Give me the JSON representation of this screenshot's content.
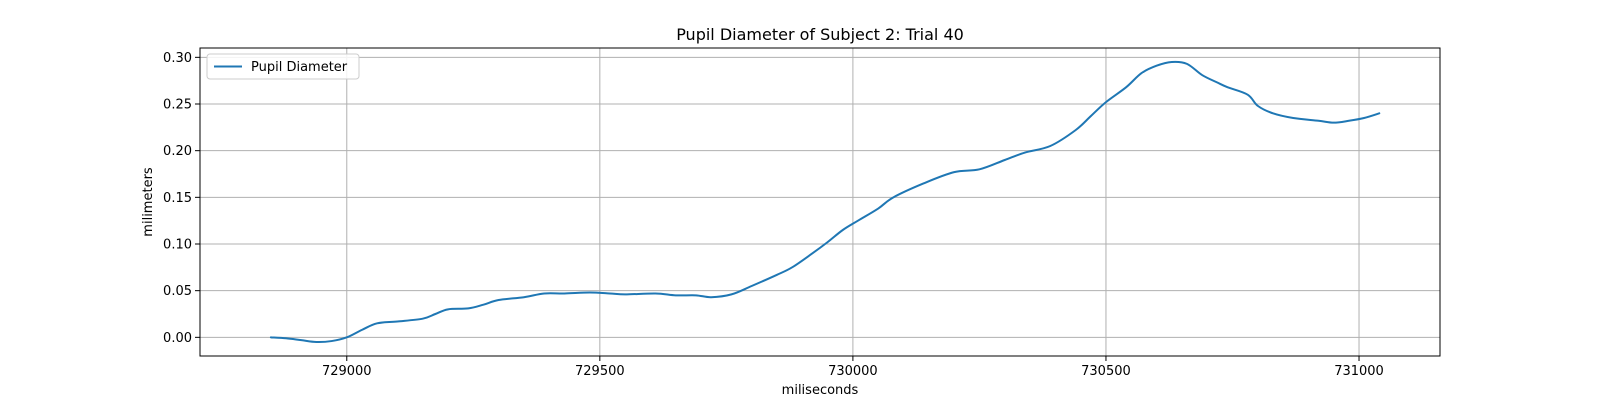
{
  "chart_data": {
    "type": "line",
    "title": "Pupil Diameter of Subject 2: Trial 40",
    "xlabel": "miliseconds",
    "ylabel": "milimeters",
    "xlim": [
      728710,
      731160
    ],
    "ylim": [
      -0.02,
      0.31
    ],
    "xticks": [
      729000,
      729500,
      730000,
      730500,
      731000
    ],
    "xtick_labels": [
      "729000",
      "729500",
      "730000",
      "730500",
      "731000"
    ],
    "yticks": [
      0.0,
      0.05,
      0.1,
      0.15,
      0.2,
      0.25,
      0.3
    ],
    "ytick_labels": [
      "0.00",
      "0.05",
      "0.10",
      "0.15",
      "0.20",
      "0.25",
      "0.30"
    ],
    "grid": true,
    "legend": {
      "position": "top-left"
    },
    "series": [
      {
        "name": "Pupil Diameter",
        "color": "#1f77b4",
        "points": [
          [
            728850,
            0.0
          ],
          [
            728880,
            -0.001
          ],
          [
            728910,
            -0.003
          ],
          [
            728940,
            -0.005
          ],
          [
            728970,
            -0.004
          ],
          [
            729000,
            0.0
          ],
          [
            729030,
            0.008
          ],
          [
            729060,
            0.015
          ],
          [
            729100,
            0.017
          ],
          [
            729150,
            0.02
          ],
          [
            729175,
            0.025
          ],
          [
            729200,
            0.03
          ],
          [
            729240,
            0.031
          ],
          [
            729270,
            0.035
          ],
          [
            729300,
            0.04
          ],
          [
            729350,
            0.043
          ],
          [
            729390,
            0.047
          ],
          [
            729430,
            0.047
          ],
          [
            729480,
            0.048
          ],
          [
            729520,
            0.047
          ],
          [
            729550,
            0.046
          ],
          [
            729610,
            0.047
          ],
          [
            729650,
            0.045
          ],
          [
            729690,
            0.045
          ],
          [
            729720,
            0.043
          ],
          [
            729760,
            0.046
          ],
          [
            729800,
            0.055
          ],
          [
            729850,
            0.067
          ],
          [
            729880,
            0.075
          ],
          [
            729920,
            0.09
          ],
          [
            729950,
            0.102
          ],
          [
            729980,
            0.115
          ],
          [
            730010,
            0.125
          ],
          [
            730050,
            0.138
          ],
          [
            730080,
            0.15
          ],
          [
            730140,
            0.165
          ],
          [
            730200,
            0.177
          ],
          [
            730250,
            0.18
          ],
          [
            730300,
            0.19
          ],
          [
            730340,
            0.198
          ],
          [
            730390,
            0.205
          ],
          [
            730440,
            0.222
          ],
          [
            730470,
            0.237
          ],
          [
            730500,
            0.252
          ],
          [
            730540,
            0.268
          ],
          [
            730570,
            0.283
          ],
          [
            730600,
            0.291
          ],
          [
            730630,
            0.295
          ],
          [
            730660,
            0.293
          ],
          [
            730690,
            0.281
          ],
          [
            730720,
            0.273
          ],
          [
            730740,
            0.268
          ],
          [
            730780,
            0.26
          ],
          [
            730800,
            0.248
          ],
          [
            730830,
            0.24
          ],
          [
            730870,
            0.235
          ],
          [
            730920,
            0.232
          ],
          [
            730950,
            0.23
          ],
          [
            730980,
            0.232
          ],
          [
            731010,
            0.235
          ],
          [
            731040,
            0.24
          ]
        ]
      }
    ]
  }
}
